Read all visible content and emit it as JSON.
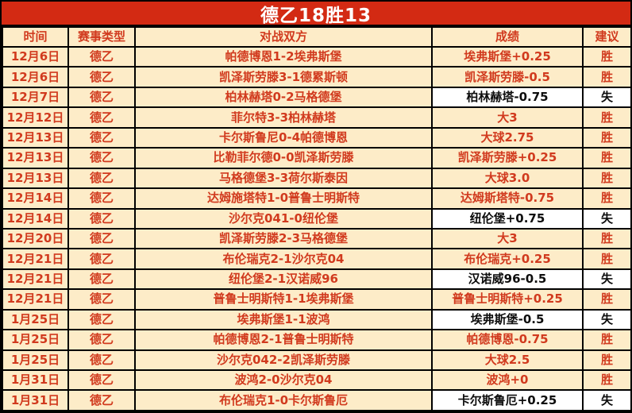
{
  "title": "德乙18胜13",
  "colors": {
    "band_red": "#d32a13",
    "text_red": "#d13a1e",
    "cream_bg": "#fdecc8",
    "loss_bg": "#ffffff",
    "loss_text": "#0d0d0d",
    "title_text": "#ffffff",
    "border": "#000000"
  },
  "table": {
    "headers": [
      "时间",
      "赛事类型",
      "对战双方",
      "成绩",
      "建议"
    ],
    "rows": [
      {
        "date": "12月6日",
        "league": "德乙",
        "match": "帕德博恩1-2埃弗斯堡",
        "result": "埃弗斯堡+0.25",
        "verdict": "胜",
        "outcome": "win"
      },
      {
        "date": "12月6日",
        "league": "德乙",
        "match": "凯泽斯劳滕3-1德累斯顿",
        "result": "凯泽斯劳滕-0.5",
        "verdict": "胜",
        "outcome": "win"
      },
      {
        "date": "12月7日",
        "league": "德乙",
        "match": "柏林赫塔0-2马格德堡",
        "result": "柏林赫塔-0.75",
        "verdict": "失",
        "outcome": "loss"
      },
      {
        "date": "12月12日",
        "league": "德乙",
        "match": "菲尔特3-3柏林赫塔",
        "result": "大3",
        "verdict": "胜",
        "outcome": "win"
      },
      {
        "date": "12月13日",
        "league": "德乙",
        "match": "卡尔斯鲁尼0-4帕德博恩",
        "result": "大球2.75",
        "verdict": "胜",
        "outcome": "win"
      },
      {
        "date": "12月13日",
        "league": "德乙",
        "match": "比勒菲尔德0-0凯泽斯劳滕",
        "result": "凯泽斯劳滕+0.25",
        "verdict": "胜",
        "outcome": "win"
      },
      {
        "date": "12月13日",
        "league": "德乙",
        "match": "马格德堡3-3荷尔斯泰因",
        "result": "大球3.0",
        "verdict": "胜",
        "outcome": "win"
      },
      {
        "date": "12月14日",
        "league": "德乙",
        "match": "达姆施塔特1-0普鲁士明斯特",
        "result": "达姆斯塔特-0.75",
        "verdict": "胜",
        "outcome": "win"
      },
      {
        "date": "12月14日",
        "league": "德乙",
        "match": "沙尔克041-0纽伦堡",
        "result": "纽伦堡+0.75",
        "verdict": "失",
        "outcome": "loss"
      },
      {
        "date": "12月20日",
        "league": "德乙",
        "match": "凯泽斯劳滕2-3马格德堡",
        "result": "大3",
        "verdict": "胜",
        "outcome": "win"
      },
      {
        "date": "12月21日",
        "league": "德乙",
        "match": "布伦瑞克2-1沙尔克04",
        "result": "布伦瑞克+0.25",
        "verdict": "胜",
        "outcome": "win"
      },
      {
        "date": "12月21日",
        "league": "德乙",
        "match": "纽伦堡2-1汉诺威96",
        "result": "汉诺威96-0.5",
        "verdict": "失",
        "outcome": "loss"
      },
      {
        "date": "12月21日",
        "league": "德乙",
        "match": "普鲁士明斯特1-1埃弗斯堡",
        "result": "普鲁士明斯特+0.25",
        "verdict": "胜",
        "outcome": "win"
      },
      {
        "date": "1月25日",
        "league": "德乙",
        "match": "埃弗斯堡1-1波鸿",
        "result": "埃弗斯堡-0.5",
        "verdict": "失",
        "outcome": "loss"
      },
      {
        "date": "1月25日",
        "league": "德乙",
        "match": "帕德博恩2-1普鲁士明斯特",
        "result": "帕德博恩-0.75",
        "verdict": "胜",
        "outcome": "win"
      },
      {
        "date": "1月25日",
        "league": "德乙",
        "match": "沙尔克042-2凯泽斯劳滕",
        "result": "大球2.5",
        "verdict": "胜",
        "outcome": "win"
      },
      {
        "date": "1月31日",
        "league": "德乙",
        "match": "波鸿2-0沙尔克04",
        "result": "波鸿+0",
        "verdict": "胜",
        "outcome": "win"
      },
      {
        "date": "1月31日",
        "league": "德乙",
        "match": "布伦瑞克1-0卡尔斯鲁厄",
        "result": "卡尔斯鲁厄+0.25",
        "verdict": "失",
        "outcome": "loss"
      }
    ]
  }
}
